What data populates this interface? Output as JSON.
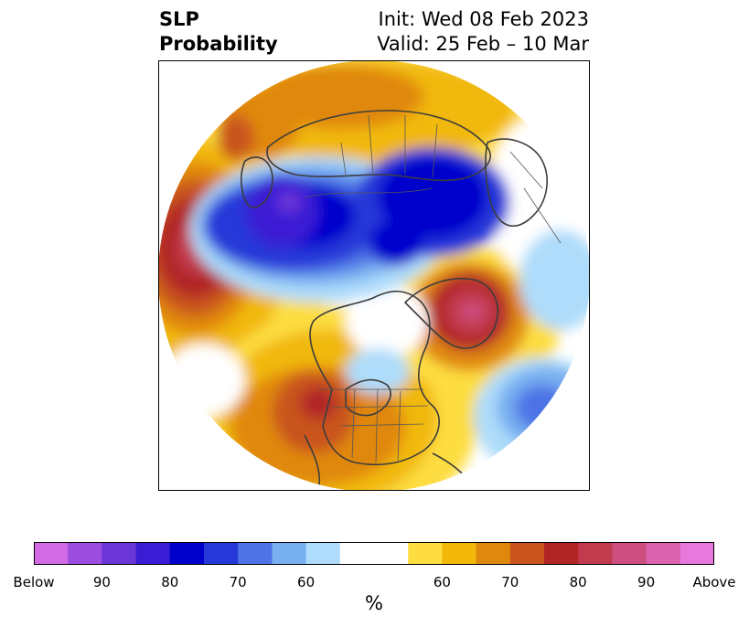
{
  "header": {
    "variable": "SLP",
    "product": "Probability",
    "init": "Init: Wed 08 Feb 2023",
    "valid": "Valid: 25 Feb – 10 Mar"
  },
  "colorbar": {
    "unit": "%",
    "colors": [
      "#d36be6",
      "#9b4ddf",
      "#6a36d8",
      "#3a1cd4",
      "#0000cc",
      "#2638d8",
      "#4d73e6",
      "#78aff0",
      "#aedcfa",
      "#ffffff",
      "#ffffff",
      "#fddd3f",
      "#f1b80a",
      "#e0880e",
      "#c9541c",
      "#b22525",
      "#c23a4d",
      "#cc4f80",
      "#db62ae",
      "#e978dd"
    ],
    "ticks": [
      {
        "label": "Below",
        "slot": 0
      },
      {
        "label": "90",
        "slot": 2
      },
      {
        "label": "80",
        "slot": 4
      },
      {
        "label": "70",
        "slot": 6
      },
      {
        "label": "60",
        "slot": 8
      },
      {
        "label": "60",
        "slot": 12
      },
      {
        "label": "70",
        "slot": 14
      },
      {
        "label": "80",
        "slot": 16
      },
      {
        "label": "90",
        "slot": 18
      },
      {
        "label": "Above",
        "slot": 20
      }
    ]
  }
}
